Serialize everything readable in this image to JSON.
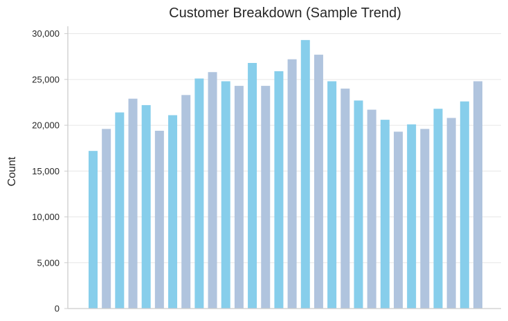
{
  "chart_data": {
    "type": "bar",
    "title": "Customer Breakdown (Sample Trend)",
    "xlabel": "",
    "ylabel": "Count",
    "ylim": [
      0,
      30800
    ],
    "yticks": [
      0,
      5000,
      10000,
      15000,
      20000,
      25000,
      30000
    ],
    "ytick_labels": [
      "0",
      "5,000",
      "10,000",
      "15,000",
      "20,000",
      "25,000",
      "30,000"
    ],
    "grid": "horizontal",
    "legend": "none",
    "categories": [
      "",
      "",
      "",
      "",
      "",
      "",
      "",
      "",
      "",
      "",
      "",
      "",
      "",
      "",
      "",
      "",
      "",
      "",
      "",
      "",
      "",
      "",
      "",
      "",
      "",
      "",
      "",
      "",
      "",
      ""
    ],
    "values": [
      17200,
      19600,
      21400,
      22900,
      22200,
      19400,
      21100,
      23300,
      25100,
      25800,
      24800,
      24300,
      26800,
      24300,
      25900,
      27200,
      29300,
      27700,
      24800,
      24000,
      22700,
      21700,
      20600,
      19300,
      20100,
      19600,
      21800,
      20800,
      22600,
      24800
    ],
    "colors": [
      "#87CEEB",
      "#B0C4DE"
    ]
  }
}
